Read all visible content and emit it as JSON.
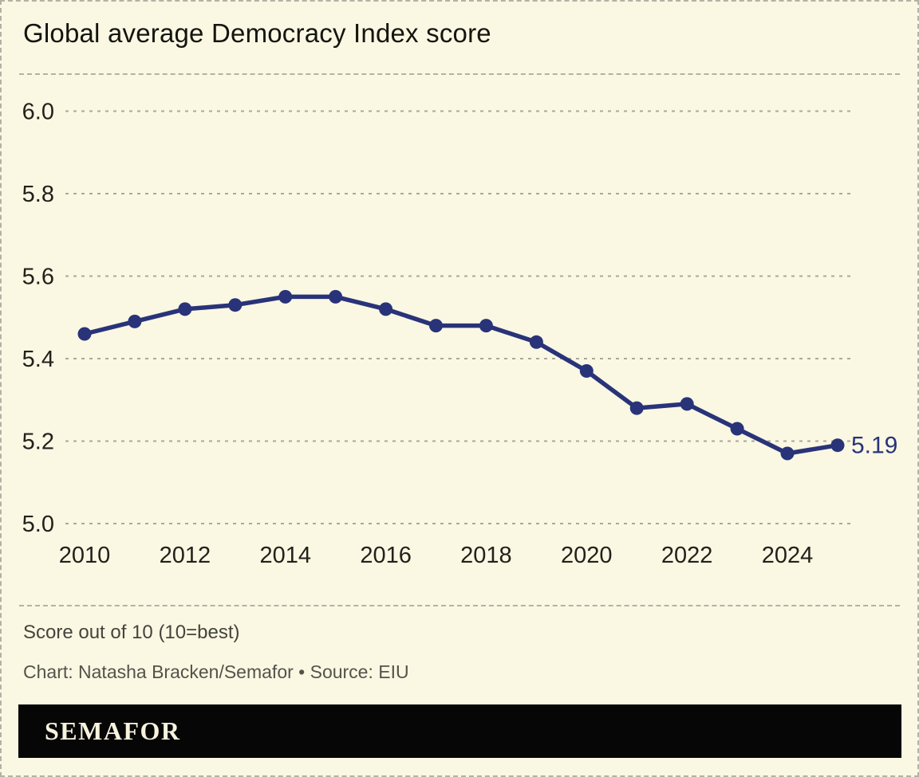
{
  "header": {
    "title": "Global average Democracy Index score"
  },
  "chart_data": {
    "type": "line",
    "title": "Global average Democracy Index score",
    "x": [
      2010,
      2011,
      2012,
      2013,
      2014,
      2015,
      2016,
      2017,
      2018,
      2019,
      2020,
      2021,
      2022,
      2023,
      2024,
      2025
    ],
    "values": [
      5.46,
      5.49,
      5.52,
      5.53,
      5.55,
      5.55,
      5.52,
      5.48,
      5.48,
      5.44,
      5.37,
      5.28,
      5.29,
      5.23,
      5.17,
      5.19
    ],
    "series_name": "Global average Democracy Index score",
    "xlabel": "",
    "ylabel": "Score out of 10 (10=best)",
    "ylim": [
      5.0,
      6.0
    ],
    "yticks": [
      6.0,
      5.8,
      5.6,
      5.4,
      5.2,
      5.0
    ],
    "ytick_labels": [
      "6.0",
      "5.8",
      "5.6",
      "5.4",
      "5.2",
      "5.0"
    ],
    "xticks": [
      2010,
      2012,
      2014,
      2016,
      2018,
      2020,
      2022,
      2024
    ],
    "end_label": "5.19",
    "grid": "horizontal-dashed",
    "legend": "none"
  },
  "footer": {
    "note": "Score out of 10 (10=best)",
    "credit": "Chart: Natasha Bracken/Semafor • Source: EIU"
  },
  "logo": {
    "text": "SEMAFOR"
  },
  "colors": {
    "background": "#faf7e3",
    "border": "#b3b2a4",
    "title": "#15150f",
    "grid": "#a9a89b",
    "tick_label": "#22211b",
    "line": "#293379",
    "end_label": "#293379",
    "note": "#45443b",
    "credit": "#54534a",
    "logo_bg": "#060606",
    "logo_text": "#f7f2dd"
  }
}
